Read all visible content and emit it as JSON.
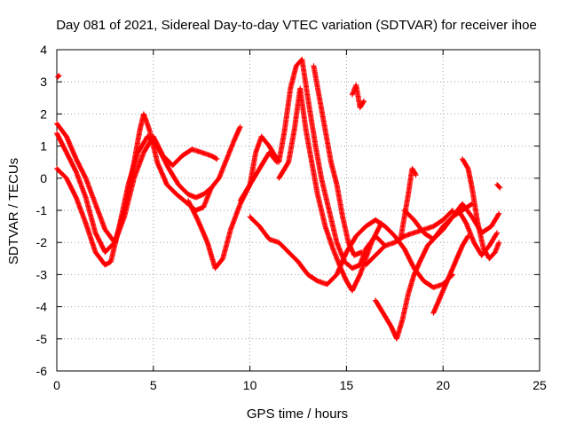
{
  "chart_data": {
    "type": "scatter",
    "title": "Day 081 of 2021, Sidereal Day-to-day VTEC variation (SDTVAR) for receiver ihoe",
    "xlabel": "GPS time / hours",
    "ylabel": "SDTVAR / TECUs",
    "xlim": [
      0,
      25
    ],
    "ylim": [
      -6,
      4
    ],
    "xticks": [
      0,
      5,
      10,
      15,
      20,
      25
    ],
    "yticks": [
      -6,
      -5,
      -4,
      -3,
      -2,
      -1,
      0,
      1,
      2,
      3,
      4
    ],
    "grid": true,
    "marker": "plus",
    "color": "#ff0000",
    "series": [
      {
        "name": "s1",
        "points": [
          [
            0.0,
            1.4
          ],
          [
            0.5,
            0.8
          ],
          [
            1.0,
            0.2
          ],
          [
            1.5,
            -0.6
          ],
          [
            2.0,
            -1.7
          ],
          [
            2.5,
            -2.3
          ],
          [
            3.0,
            -2.0
          ],
          [
            3.5,
            -1.2
          ],
          [
            4.0,
            0.0
          ],
          [
            4.5,
            0.8
          ],
          [
            5.0,
            1.3
          ],
          [
            5.5,
            0.7
          ],
          [
            6.0,
            0.4
          ],
          [
            6.5,
            0.7
          ],
          [
            7.0,
            0.9
          ],
          [
            7.5,
            0.8
          ],
          [
            8.0,
            0.7
          ],
          [
            8.3,
            0.6
          ]
        ]
      },
      {
        "name": "s2",
        "points": [
          [
            0.0,
            1.7
          ],
          [
            0.5,
            1.3
          ],
          [
            1.0,
            0.6
          ],
          [
            1.5,
            0.0
          ],
          [
            2.0,
            -0.8
          ],
          [
            2.5,
            -1.6
          ],
          [
            3.0,
            -2.0
          ],
          [
            3.5,
            -1.0
          ],
          [
            4.0,
            0.5
          ],
          [
            4.3,
            1.5
          ],
          [
            4.5,
            2.0
          ],
          [
            4.8,
            1.5
          ],
          [
            5.2,
            0.5
          ],
          [
            5.7,
            -0.2
          ],
          [
            6.2,
            -0.5
          ],
          [
            6.8,
            -0.8
          ],
          [
            7.2,
            -1.0
          ],
          [
            7.6,
            -0.9
          ],
          [
            8.0,
            -0.3
          ],
          [
            8.4,
            0.0
          ],
          [
            8.8,
            0.6
          ],
          [
            9.2,
            1.2
          ],
          [
            9.5,
            1.6
          ]
        ]
      },
      {
        "name": "s3",
        "points": [
          [
            0.0,
            0.3
          ],
          [
            0.5,
            0.0
          ],
          [
            1.0,
            -0.6
          ],
          [
            1.5,
            -1.4
          ],
          [
            2.0,
            -2.3
          ],
          [
            2.5,
            -2.7
          ],
          [
            2.8,
            -2.6
          ],
          [
            3.2,
            -1.6
          ],
          [
            3.7,
            -0.2
          ],
          [
            4.2,
            0.8
          ],
          [
            4.7,
            1.3
          ],
          [
            5.2,
            1.0
          ],
          [
            5.8,
            0.3
          ],
          [
            6.3,
            -0.2
          ],
          [
            6.8,
            -0.5
          ],
          [
            7.2,
            -0.6
          ],
          [
            7.6,
            -0.5
          ],
          [
            8.0,
            -0.3
          ]
        ]
      },
      {
        "name": "s4",
        "points": [
          [
            0.05,
            3.15
          ],
          [
            0.12,
            3.2
          ]
        ]
      },
      {
        "name": "s5",
        "points": [
          [
            6.8,
            -0.7
          ],
          [
            7.3,
            -1.3
          ],
          [
            7.8,
            -2.0
          ],
          [
            8.2,
            -2.8
          ],
          [
            8.6,
            -2.5
          ],
          [
            9.0,
            -1.6
          ],
          [
            9.5,
            -0.8
          ],
          [
            10.0,
            -0.2
          ],
          [
            10.5,
            0.3
          ],
          [
            11.0,
            0.8
          ],
          [
            11.4,
            0.5
          ]
        ]
      },
      {
        "name": "s6",
        "points": [
          [
            9.5,
            -0.7
          ],
          [
            10.0,
            -0.2
          ],
          [
            10.3,
            0.8
          ],
          [
            10.6,
            1.3
          ],
          [
            11.0,
            1.0
          ],
          [
            11.5,
            0.5
          ],
          [
            11.8,
            1.5
          ],
          [
            12.1,
            2.8
          ],
          [
            12.4,
            3.5
          ],
          [
            12.7,
            3.7
          ],
          [
            13.0,
            2.5
          ],
          [
            13.4,
            1.0
          ],
          [
            13.7,
            0.0
          ],
          [
            14.1,
            -1.0
          ],
          [
            14.5,
            -2.0
          ],
          [
            14.9,
            -2.6
          ],
          [
            15.3,
            -2.8
          ],
          [
            15.7,
            -2.7
          ],
          [
            16.0,
            -2.2
          ],
          [
            16.5,
            -1.8
          ],
          [
            17.0,
            -2.1
          ]
        ]
      },
      {
        "name": "s7",
        "points": [
          [
            10.0,
            -1.2
          ],
          [
            10.5,
            -1.5
          ],
          [
            11.0,
            -1.9
          ],
          [
            11.5,
            -2.0
          ],
          [
            12.0,
            -2.3
          ],
          [
            12.5,
            -2.6
          ],
          [
            13.0,
            -3.0
          ],
          [
            13.5,
            -3.2
          ],
          [
            14.0,
            -3.3
          ],
          [
            14.5,
            -3.0
          ],
          [
            15.0,
            -2.3
          ],
          [
            15.5,
            -1.8
          ],
          [
            16.0,
            -1.5
          ],
          [
            16.5,
            -1.3
          ],
          [
            17.0,
            -1.5
          ],
          [
            17.5,
            -1.8
          ],
          [
            18.0,
            -2.2
          ],
          [
            18.5,
            -2.8
          ],
          [
            19.0,
            -3.2
          ],
          [
            19.5,
            -3.4
          ],
          [
            20.0,
            -3.3
          ],
          [
            20.5,
            -3.0
          ]
        ]
      },
      {
        "name": "s8",
        "points": [
          [
            11.5,
            0.0
          ],
          [
            12.0,
            0.5
          ],
          [
            12.3,
            1.5
          ],
          [
            12.6,
            2.8
          ],
          [
            12.9,
            1.5
          ],
          [
            13.2,
            0.5
          ],
          [
            13.5,
            -0.5
          ],
          [
            13.9,
            -1.5
          ],
          [
            14.3,
            -2.2
          ],
          [
            14.7,
            -2.8
          ],
          [
            15.0,
            -3.2
          ],
          [
            15.3,
            -3.5
          ],
          [
            15.7,
            -3.0
          ],
          [
            16.0,
            -2.5
          ],
          [
            16.3,
            -2.0
          ],
          [
            16.8,
            -1.4
          ]
        ]
      },
      {
        "name": "s9",
        "points": [
          [
            13.3,
            3.5
          ],
          [
            13.6,
            2.5
          ],
          [
            13.9,
            1.5
          ],
          [
            14.2,
            0.5
          ],
          [
            14.5,
            -0.2
          ],
          [
            14.8,
            -1.2
          ],
          [
            15.1,
            -2.0
          ],
          [
            15.4,
            -2.4
          ],
          [
            15.8,
            -2.3
          ]
        ]
      },
      {
        "name": "s10",
        "points": [
          [
            15.3,
            2.6
          ],
          [
            15.5,
            2.9
          ],
          [
            15.7,
            2.2
          ],
          [
            15.9,
            2.4
          ]
        ]
      },
      {
        "name": "s11",
        "points": [
          [
            16.5,
            -3.8
          ],
          [
            17.0,
            -4.3
          ],
          [
            17.3,
            -4.6
          ],
          [
            17.6,
            -5.0
          ],
          [
            17.9,
            -4.4
          ],
          [
            18.2,
            -3.6
          ],
          [
            18.5,
            -3.0
          ],
          [
            18.8,
            -2.6
          ],
          [
            19.2,
            -2.1
          ],
          [
            19.5,
            -1.9
          ],
          [
            20.0,
            -1.5
          ],
          [
            20.5,
            -1.2
          ],
          [
            21.0,
            -1.0
          ],
          [
            21.5,
            -0.8
          ]
        ]
      },
      {
        "name": "s12",
        "points": [
          [
            16.0,
            -2.7
          ],
          [
            16.5,
            -2.4
          ],
          [
            17.0,
            -2.1
          ],
          [
            17.5,
            -2.0
          ],
          [
            18.0,
            -1.8
          ],
          [
            18.5,
            -1.7
          ],
          [
            19.0,
            -1.6
          ],
          [
            19.5,
            -1.5
          ],
          [
            20.0,
            -1.3
          ],
          [
            20.5,
            -1.0
          ]
        ]
      },
      {
        "name": "s13",
        "points": [
          [
            18.0,
            -1.0
          ],
          [
            18.5,
            -1.3
          ],
          [
            19.0,
            -1.7
          ],
          [
            19.5,
            -1.9
          ],
          [
            20.0,
            -1.6
          ],
          [
            20.5,
            -1.2
          ],
          [
            21.0,
            -0.8
          ],
          [
            21.5,
            -1.2
          ],
          [
            22.0,
            -1.7
          ],
          [
            22.5,
            -1.5
          ],
          [
            22.9,
            -1.1
          ]
        ]
      },
      {
        "name": "s14",
        "points": [
          [
            17.8,
            -1.9
          ],
          [
            18.0,
            -1.2
          ],
          [
            18.2,
            -0.5
          ],
          [
            18.4,
            0.3
          ],
          [
            18.6,
            0.1
          ]
        ]
      },
      {
        "name": "s15",
        "points": [
          [
            19.5,
            -4.2
          ],
          [
            20.0,
            -3.5
          ],
          [
            20.5,
            -2.8
          ],
          [
            21.0,
            -2.1
          ],
          [
            21.3,
            -1.8
          ]
        ]
      },
      {
        "name": "s16",
        "points": [
          [
            21.0,
            0.6
          ],
          [
            21.3,
            0.3
          ],
          [
            21.5,
            -0.3
          ],
          [
            21.8,
            -1.4
          ],
          [
            22.1,
            -2.2
          ],
          [
            22.4,
            -2.5
          ],
          [
            22.7,
            -2.3
          ],
          [
            22.9,
            -2.0
          ]
        ]
      },
      {
        "name": "s17",
        "points": [
          [
            20.8,
            -1.0
          ],
          [
            21.2,
            -1.4
          ],
          [
            21.6,
            -2.0
          ],
          [
            22.0,
            -2.4
          ],
          [
            22.4,
            -2.1
          ],
          [
            22.8,
            -1.7
          ]
        ]
      },
      {
        "name": "s18",
        "points": [
          [
            22.8,
            -0.2
          ],
          [
            22.95,
            -0.3
          ]
        ]
      }
    ]
  }
}
